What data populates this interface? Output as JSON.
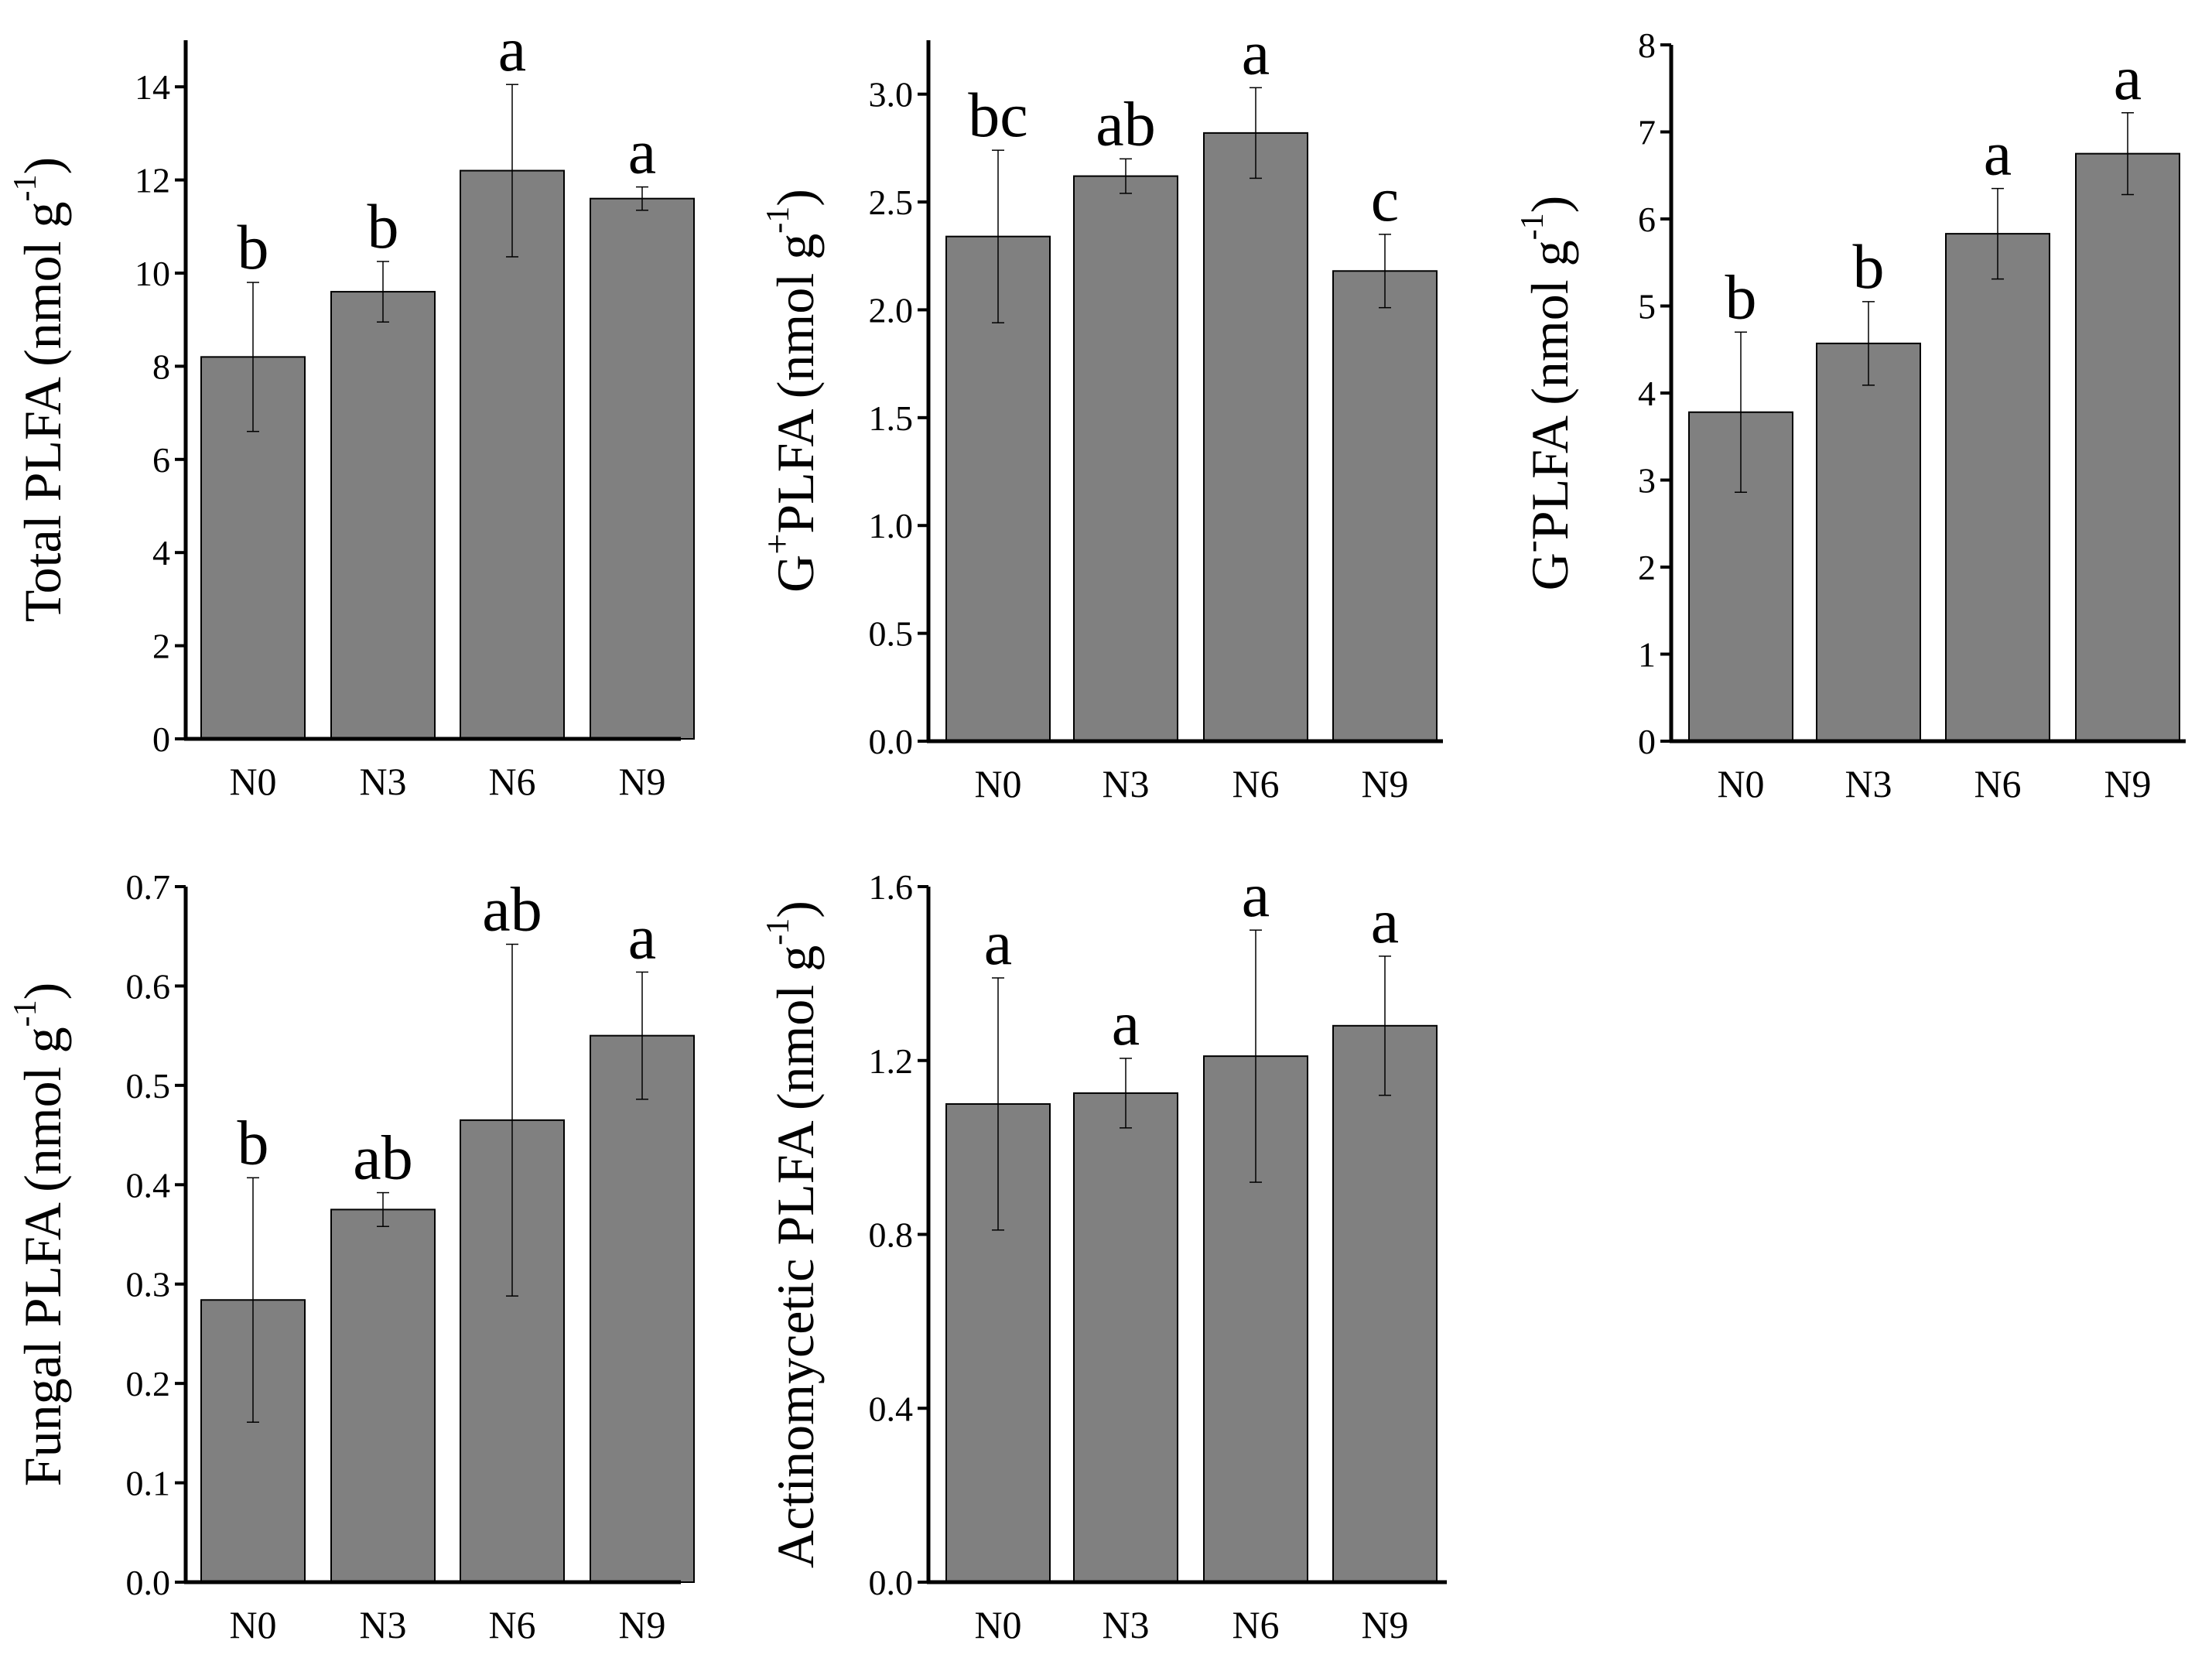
{
  "colors": {
    "bar_fill": "#808080",
    "bar_stroke": "#000000",
    "axis": "#000000",
    "background": "#ffffff"
  },
  "chart_data": [
    {
      "type": "bar",
      "panel": "top-left",
      "ylabel": "Total PLFA (nmol g",
      "ylabel_sup": "-1",
      "ylabel_tail": ")",
      "categories": [
        "N0",
        "N3",
        "N6",
        "N9"
      ],
      "values": [
        8.2,
        9.6,
        12.2,
        11.6
      ],
      "errors": [
        1.6,
        0.65,
        1.85,
        0.25
      ],
      "letters": [
        "b",
        "b",
        "a",
        "a"
      ],
      "ylim": [
        0,
        15
      ],
      "ticks": [
        0,
        2,
        4,
        6,
        8,
        10,
        12,
        14
      ],
      "tick_labels": [
        "0",
        "2",
        "4",
        "6",
        "8",
        "10",
        "12",
        "14"
      ]
    },
    {
      "type": "bar",
      "panel": "top-middle",
      "ylabel_pre": "G",
      "ylabel_pre_sup": "+",
      "ylabel": "PLFA (nmol g",
      "ylabel_sup": "-1",
      "ylabel_tail": ")",
      "categories": [
        "N0",
        "N3",
        "N6",
        "N9"
      ],
      "values": [
        2.34,
        2.62,
        2.82,
        2.18
      ],
      "errors": [
        0.4,
        0.08,
        0.21,
        0.17
      ],
      "letters": [
        "bc",
        "ab",
        "a",
        "c"
      ],
      "ylim": [
        0,
        3.25
      ],
      "ticks": [
        0,
        0.5,
        1,
        1.5,
        2,
        2.5,
        3
      ],
      "tick_labels": [
        "0.0",
        "0.5",
        "1.0",
        "1.5",
        "2.0",
        "2.5",
        "3.0"
      ]
    },
    {
      "type": "bar",
      "panel": "top-right",
      "ylabel_pre": "G",
      "ylabel_pre_sup": "-",
      "ylabel": "PLFA (nmol g",
      "ylabel_sup": "-1",
      "ylabel_tail": ")",
      "categories": [
        "N0",
        "N3",
        "N6",
        "N9"
      ],
      "values": [
        3.78,
        4.57,
        5.83,
        6.75
      ],
      "errors": [
        0.92,
        0.48,
        0.52,
        0.47
      ],
      "letters": [
        "b",
        "b",
        "a",
        "a"
      ],
      "ylim": [
        0,
        8
      ],
      "ticks": [
        0,
        1,
        2,
        3,
        4,
        5,
        6,
        7,
        8
      ],
      "tick_labels": [
        "0",
        "1",
        "2",
        "3",
        "4",
        "5",
        "6",
        "7",
        "8"
      ]
    },
    {
      "type": "bar",
      "panel": "bottom-left",
      "ylabel": "Fungal PLFA (nmol g",
      "ylabel_sup": "-1",
      "ylabel_tail": ")",
      "categories": [
        "N0",
        "N3",
        "N6",
        "N9"
      ],
      "values": [
        0.284,
        0.375,
        0.465,
        0.55
      ],
      "errors": [
        0.123,
        0.017,
        0.177,
        0.064
      ],
      "letters": [
        "b",
        "ab",
        "ab",
        "a"
      ],
      "ylim": [
        0,
        0.7
      ],
      "ticks": [
        0,
        0.1,
        0.2,
        0.3,
        0.4,
        0.5,
        0.6,
        0.7
      ],
      "tick_labels": [
        "0.0",
        "0.1",
        "0.2",
        "0.3",
        "0.4",
        "0.5",
        "0.6",
        "0.7"
      ]
    },
    {
      "type": "bar",
      "panel": "bottom-middle",
      "ylabel": "Actinomycetic PLFA (nmol g",
      "ylabel_sup": "-1",
      "ylabel_tail": ")",
      "categories": [
        "N0",
        "N3",
        "N6",
        "N9"
      ],
      "values": [
        1.1,
        1.125,
        1.21,
        1.28
      ],
      "errors": [
        0.29,
        0.08,
        0.29,
        0.16
      ],
      "letters": [
        "a",
        "a",
        "a",
        "a"
      ],
      "ylim": [
        0,
        1.6
      ],
      "ticks": [
        0,
        0.4,
        0.8,
        1.2,
        1.6
      ],
      "tick_labels": [
        "0.0",
        "0.4",
        "0.8",
        "1.2",
        "1.6"
      ]
    }
  ]
}
